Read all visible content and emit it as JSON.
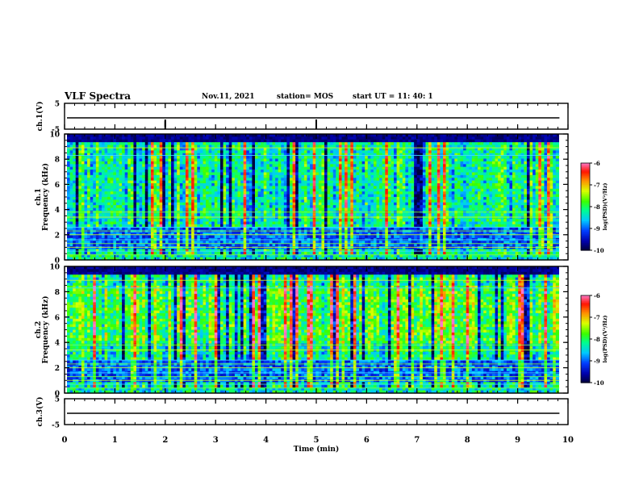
{
  "header": {
    "title": "VLF Spectra",
    "date": "Nov.11, 2021",
    "station": "station= MOS",
    "start": "start  UT =  11: 40: 1"
  },
  "chart_data": {
    "type": "heatmap",
    "x_label": "Time  (min)",
    "x_range": [
      0,
      10
    ],
    "x_ticks": [
      "0",
      "1",
      "2",
      "3",
      "4",
      "5",
      "6",
      "7",
      "8",
      "9",
      "10"
    ],
    "data_end_min": 9.83,
    "panels": [
      {
        "id": "ch1-voltage",
        "type": "line",
        "ylabel": "ch.1(V)",
        "ylim": [
          -5,
          5
        ],
        "y_ticks": [
          "5",
          "-5"
        ],
        "baseline_value": 0
      },
      {
        "id": "ch1-spectrogram",
        "type": "heatmap",
        "ylabel": "ch.1\nFrequency  (kHz)",
        "ylim": [
          0,
          10
        ],
        "y_ticks": [
          "0",
          "2",
          "4",
          "6",
          "8",
          "10"
        ],
        "colorbar": {
          "label": "log(PSD)(V²/Hz)",
          "range": [
            -10,
            -6
          ],
          "ticks": [
            "-6",
            "-7",
            "-8",
            "-9",
            "-10"
          ]
        },
        "seed": 11
      },
      {
        "id": "ch2-spectrogram",
        "type": "heatmap",
        "ylabel": "ch.2\nFrequency  (kHz)",
        "ylim": [
          0,
          10
        ],
        "y_ticks": [
          "0",
          "2",
          "4",
          "6",
          "8",
          "10"
        ],
        "colorbar": {
          "label": "log(PSD)(V²/Hz)",
          "range": [
            -10,
            -6
          ],
          "ticks": [
            "-6",
            "-7",
            "-8",
            "-9",
            "-10"
          ]
        },
        "seed": 23
      },
      {
        "id": "ch3-voltage",
        "type": "line",
        "ylabel": "ch.3(V)",
        "ylim": [
          -5,
          5
        ],
        "y_ticks": [
          "5",
          "-5"
        ],
        "baseline_value": 0
      }
    ]
  }
}
